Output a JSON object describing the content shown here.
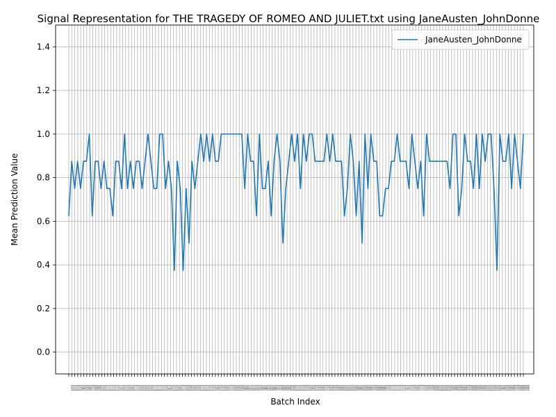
{
  "chart_data": {
    "type": "line",
    "title": "Signal Representation for THE TRAGEDY OF ROMEO AND JULIET.txt using JaneAusten_JohnDonne",
    "xlabel": "Batch Index",
    "ylabel": "Mean Prediction Value",
    "ylim": [
      -0.1,
      1.5
    ],
    "yticks": [
      0.0,
      0.2,
      0.4,
      0.6,
      0.8,
      1.0,
      1.2,
      1.4
    ],
    "grid": true,
    "legend_position": "top-right",
    "series": [
      {
        "name": "JaneAusten_JohnDonne",
        "color": "#1f77b4",
        "values": [
          0.625,
          0.875,
          0.75,
          0.875,
          0.75,
          0.875,
          0.875,
          1.0,
          0.625,
          0.875,
          0.875,
          0.75,
          0.875,
          0.75,
          0.75,
          0.625,
          0.875,
          0.875,
          0.75,
          1.0,
          0.75,
          0.875,
          0.75,
          0.875,
          0.875,
          0.75,
          0.875,
          1.0,
          0.875,
          0.75,
          0.75,
          1.0,
          1.0,
          0.75,
          0.875,
          0.75,
          0.375,
          0.875,
          0.75,
          0.375,
          0.75,
          0.5,
          0.875,
          0.75,
          0.875,
          1.0,
          0.875,
          1.0,
          0.875,
          1.0,
          0.875,
          0.875,
          1.0,
          1.0,
          1.0,
          1.0,
          1.0,
          1.0,
          1.0,
          1.0,
          0.75,
          1.0,
          0.875,
          0.875,
          0.625,
          1.0,
          0.75,
          0.75,
          0.875,
          0.625,
          0.875,
          1.0,
          0.875,
          0.5,
          0.75,
          0.875,
          1.0,
          0.875,
          1.0,
          0.75,
          1.0,
          0.875,
          1.0,
          1.0,
          0.875,
          0.875,
          0.875,
          0.875,
          1.0,
          0.875,
          1.0,
          0.875,
          0.875,
          0.875,
          0.625,
          0.75,
          1.0,
          0.875,
          0.625,
          0.875,
          0.5,
          1.0,
          0.75,
          1.0,
          0.875,
          0.875,
          0.625,
          0.625,
          0.75,
          0.75,
          0.875,
          0.875,
          1.0,
          0.875,
          0.875,
          0.875,
          0.75,
          1.0,
          0.875,
          0.75,
          0.875,
          0.625,
          1.0,
          0.875,
          0.875,
          0.875,
          0.875,
          0.875,
          0.875,
          0.875,
          0.75,
          1.0,
          1.0,
          0.625,
          0.75,
          1.0,
          0.875,
          0.875,
          0.75,
          1.0,
          0.75,
          1.0,
          0.875,
          1.0,
          1.0,
          0.75,
          0.375,
          1.0,
          0.875,
          0.875,
          1.0,
          0.75,
          1.0,
          0.875,
          0.75,
          1.0
        ]
      }
    ],
    "xtick_text": "01234567891011121314151617181920212223242526272829303132333435363738394041424344454647484950515253545556575859606162636465666768697071727374757677787980818283848586878889909192939495969798991001011021031041051061071081091101111121131141151161171181191201211221231241251261271281291301311321331341351361371381391401411421431441451461471481491501511521531541551561571581591601611621631641651661671681691701711721731741751761771781791801811821831841851861871881891901911921931941951961971981992002012022032042052062072082092102112122132142152162172182192202212222232242252262272282292302312322332342352362372382392402412422432442452462472482492502512522532542552562572582592602612622632642652662672682692702712722732742752762772782792802812822832842852862872882892902912922932942952962972982993003013023033043053063073083093103113123133143153163173183193203213223233243253263273283293303313323333343353363373383393403413423433443453463473483493503513523533543553563573583593603613623633643653663673683693703713723733743753763773783793803813823833843853863873883893903913923933943953963973983994004014024034044054064074084094104114124134144154164174184194204214224234244254264274284294304314324334344354364374384394404414424434444454464474484494504514524534544554564574584594604614624634644654664674684694704714724734744754764774784794804814824834844854864874884894904914924934944954964974984995005015025035045055065075085095105115125135145155165175185195205215225235245255265275285295305315325335345355365375385395405415425435445455465475485495505515525535545555565575585595605615625635645655665675685695705715725735745755765775785795805815825835845855865875885895905915925935945955965975985996006016026036046056066076086096106116126136146156166176186196206216226236246256266276286296306316326336346356366376386396406416426436446456466476486496506516526536546556566576586596606616626636646656666676686696706716726736746756766776786796806816826836846856866876886896906916926936946956966976986997007017027037047057067077087097107117127137147157167177187197207217227237247257267277287297307317327337347357367377387397407417427437447457467477487497507517527537547557567577587597607617627637647657667677687697707717727737747757767777787797807817827837847857867877887897907917927937947957967977987998008018028038048058068078088098108118128138148158168178188198208218228238248258268278288298308318328338348358368378388398408418428438448458468478488498508518528538548558568578588598608618628638648658668678688698708718728738748758768778788798808818828838848858868878888898908918928938948958968978988999009019029039049059069079089099109119129139149159169179189199209219229239249259269279289299309319329339349359369379389399409419429439449459469479489499509519529539549559569579589599609619629639649659669679689699709719729739749759769779789799809819829839849859869879889899909919929939949959969979989991000",
    "xtick_count": 153
  }
}
